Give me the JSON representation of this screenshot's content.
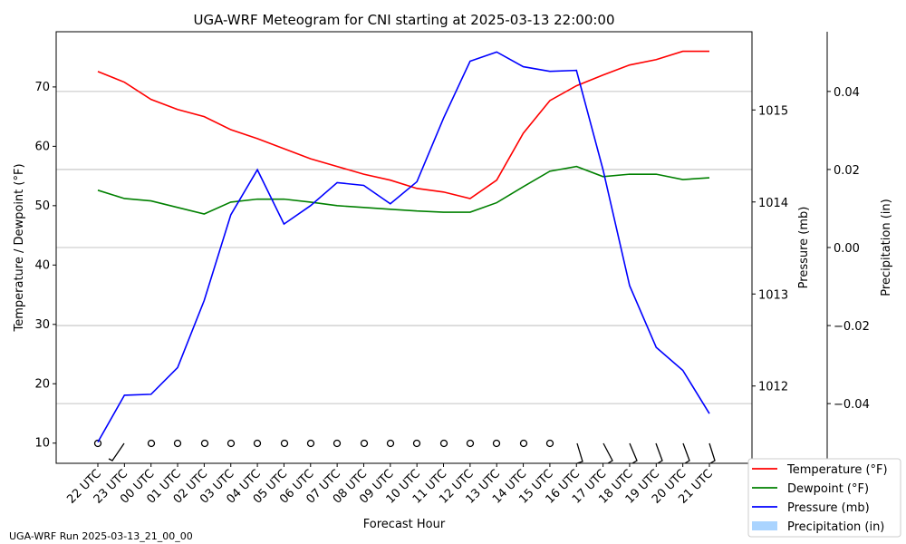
{
  "chart_data": {
    "type": "line",
    "title": "UGA-WRF Meteogram for CNI starting at 2025-03-13 22:00:00",
    "footer": "UGA-WRF Run 2025-03-13_21_00_00",
    "x_label": "Forecast Hour",
    "y_label": "Temperature / Dewpoint (°F)",
    "y2_label": "Pressure (mb)",
    "y3_label": "Precipitation (in)",
    "categories": [
      "22 UTC",
      "23 UTC",
      "00 UTC",
      "01 UTC",
      "02 UTC",
      "03 UTC",
      "04 UTC",
      "05 UTC",
      "06 UTC",
      "07 UTC",
      "08 UTC",
      "09 UTC",
      "10 UTC",
      "11 UTC",
      "12 UTC",
      "13 UTC",
      "14 UTC",
      "15 UTC",
      "16 UTC",
      "17 UTC",
      "18 UTC",
      "19 UTC",
      "20 UTC",
      "21 UTC"
    ],
    "series": [
      {
        "name": "Temperature (°F)",
        "color": "#ff0000",
        "values": [
          72.6,
          70.8,
          67.9,
          66.2,
          65.0,
          62.8,
          61.3,
          59.6,
          57.9,
          56.6,
          55.3,
          54.3,
          52.9,
          52.3,
          51.2,
          54.3,
          62.2,
          67.7,
          70.2,
          72.0,
          73.7,
          74.6,
          76.0,
          76.0
        ]
      },
      {
        "name": "Dewpoint (°F)",
        "color": "#008000",
        "values": [
          52.6,
          51.2,
          50.8,
          49.7,
          48.6,
          50.6,
          51.1,
          51.1,
          50.6,
          50.0,
          49.7,
          49.4,
          49.1,
          48.9,
          48.9,
          50.5,
          53.2,
          55.8,
          56.6,
          54.9,
          55.3,
          55.3,
          54.4,
          54.7
        ]
      },
      {
        "name": "Pressure (mb)",
        "color": "#0000ff",
        "axis": "y2",
        "values": [
          1011.39,
          1011.9,
          1011.91,
          1012.2,
          1012.93,
          1013.86,
          1014.35,
          1013.76,
          1013.96,
          1014.21,
          1014.18,
          1013.98,
          1014.22,
          1014.91,
          1015.53,
          1015.63,
          1015.47,
          1015.42,
          1015.43,
          1014.35,
          1013.09,
          1012.42,
          1012.17,
          1011.7
        ]
      },
      {
        "name": "Precipitation (in)",
        "color": "#aad4ff",
        "axis": "y3",
        "kind": "bar",
        "values": [
          0,
          0,
          0,
          0,
          0,
          0,
          0,
          0,
          0,
          0,
          0,
          0,
          0,
          0,
          0,
          0,
          0,
          0,
          0,
          0,
          0,
          0,
          0,
          0
        ]
      }
    ],
    "ylim": [
      6.6,
      79.3
    ],
    "yticks": [
      10,
      20,
      30,
      40,
      50,
      60,
      70
    ],
    "y2lim": [
      1011.16,
      1015.85
    ],
    "y2ticks": [
      1012,
      1013,
      1014,
      1015
    ],
    "y3lim": [
      -0.0553,
      0.0553
    ],
    "y3ticks": [
      {
        "value": -0.04,
        "label": "−0.04"
      },
      {
        "value": -0.02,
        "label": "−0.02"
      },
      {
        "value": 0,
        "label": "0.00"
      },
      0.02,
      0.04
    ],
    "grid": true,
    "legend": "lower right"
  }
}
